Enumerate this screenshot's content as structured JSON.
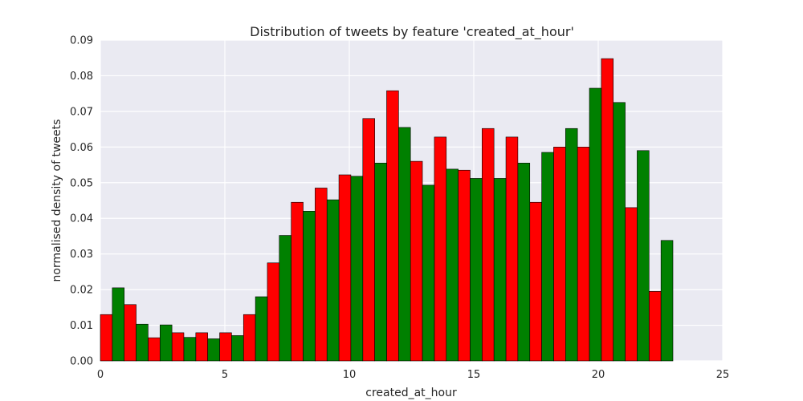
{
  "chart_data": {
    "type": "bar",
    "title": "Distribution of tweets by feature 'created_at_hour'",
    "xlabel": "created_at_hour",
    "ylabel": "normalised density of tweets",
    "xlim": [
      0,
      25
    ],
    "ylim": [
      0,
      0.09
    ],
    "xticks": [
      0,
      5,
      10,
      15,
      20,
      25
    ],
    "yticks": [
      0.0,
      0.01,
      0.02,
      0.03,
      0.04,
      0.05,
      0.06,
      0.07,
      0.08,
      0.09
    ],
    "ytick_labels": [
      "0.00",
      "0.01",
      "0.02",
      "0.03",
      "0.04",
      "0.05",
      "0.06",
      "0.07",
      "0.08",
      "0.09"
    ],
    "grid": true,
    "bin_width": 0.958,
    "x": [
      0,
      0.958,
      1.917,
      2.875,
      3.833,
      4.792,
      5.75,
      6.708,
      7.667,
      8.625,
      9.583,
      10.542,
      11.5,
      12.458,
      13.417,
      14.375,
      15.333,
      16.292,
      17.25,
      18.208,
      19.167,
      20.125,
      21.083,
      22.042
    ],
    "series": [
      {
        "color": "#ff0000",
        "values": [
          0.013,
          0.0158,
          0.0065,
          0.0079,
          0.0079,
          0.0079,
          0.013,
          0.0275,
          0.0445,
          0.0485,
          0.0522,
          0.068,
          0.0758,
          0.056,
          0.0628,
          0.0535,
          0.0652,
          0.0628,
          0.0445,
          0.06,
          0.06,
          0.0848,
          0.043,
          0.0195
        ]
      },
      {
        "color": "#008000",
        "values": [
          0.0205,
          0.0103,
          0.0101,
          0.0066,
          0.0062,
          0.0071,
          0.018,
          0.0352,
          0.042,
          0.0452,
          0.0518,
          0.0555,
          0.0655,
          0.0493,
          0.0538,
          0.0512,
          0.0512,
          0.0555,
          0.0585,
          0.0652,
          0.0765,
          0.0725,
          0.059,
          0.0338
        ]
      }
    ]
  }
}
